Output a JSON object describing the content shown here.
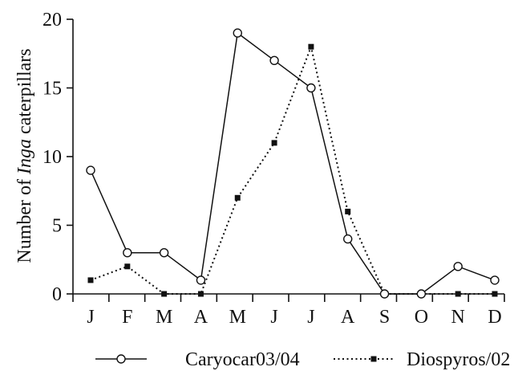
{
  "chart_data": {
    "type": "line",
    "categories": [
      "J",
      "F",
      "M",
      "A",
      "M",
      "J",
      "J",
      "A",
      "S",
      "O",
      "N",
      "D"
    ],
    "ylabel": {
      "prefix": "Number of ",
      "italic": "Inga",
      "suffix": " caterpillars"
    },
    "ylim": [
      0,
      20
    ],
    "yticks": [
      0,
      5,
      10,
      15,
      20
    ],
    "grid": false,
    "legend_position": "bottom",
    "series": [
      {
        "name": "Caryocar03/04",
        "style": "solid",
        "marker": "open-circle",
        "color": "#111111",
        "values": [
          9,
          3,
          3,
          1,
          19,
          17,
          15,
          4,
          0,
          0,
          2,
          1
        ]
      },
      {
        "name": "Diospyros/02",
        "style": "dotted",
        "marker": "filled-square",
        "color": "#111111",
        "values": [
          1,
          2,
          0,
          0,
          7,
          11,
          18,
          6,
          0,
          0,
          0,
          0
        ]
      }
    ]
  }
}
